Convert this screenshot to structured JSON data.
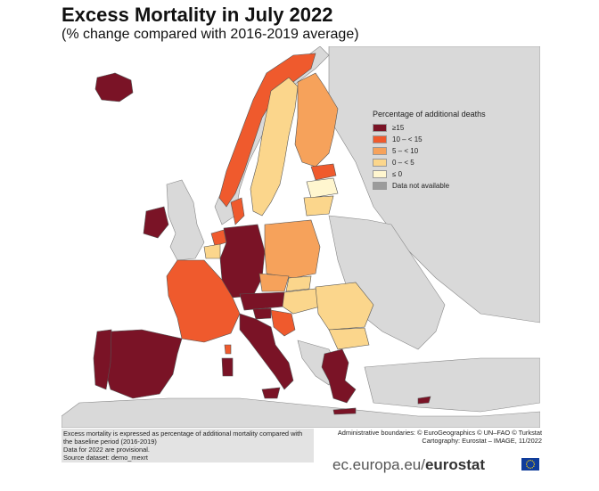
{
  "title": "Excess Mortality in July 2022",
  "subtitle": "(% change compared with 2016-2019 average)",
  "legend": {
    "title": "Percentage of additional deaths",
    "items": [
      {
        "label": "≥15",
        "color": "#7a1326"
      },
      {
        "label": "10 – < 15",
        "color": "#ef5a2d"
      },
      {
        "label": "5 – < 10",
        "color": "#f6a25b"
      },
      {
        "label": "0 – < 5",
        "color": "#fbd68c"
      },
      {
        "label": "≤ 0",
        "color": "#fff6cf"
      },
      {
        "label": "Data not available",
        "color": "#9b9b9b"
      }
    ]
  },
  "map_colors": {
    "sea": "#ffffff",
    "non_eu_land": "#d9d9d9",
    "border": "#555555"
  },
  "notes": {
    "line1": "Excess mortality is expressed as percentage of additional mortality compared with the baseline period (2016-2019)",
    "line2": "Data for 2022 are provisional.",
    "line3": "Source dataset: demo_mexrt"
  },
  "credits": {
    "line1": "Administrative boundaries: © EuroGeographics © UN–FAO © Turkstat",
    "line2": "Cartography: Eurostat – IMAGE, 11/2022"
  },
  "footer": {
    "site_prefix": "ec.europa.eu/",
    "site_brand": "eurostat"
  }
}
